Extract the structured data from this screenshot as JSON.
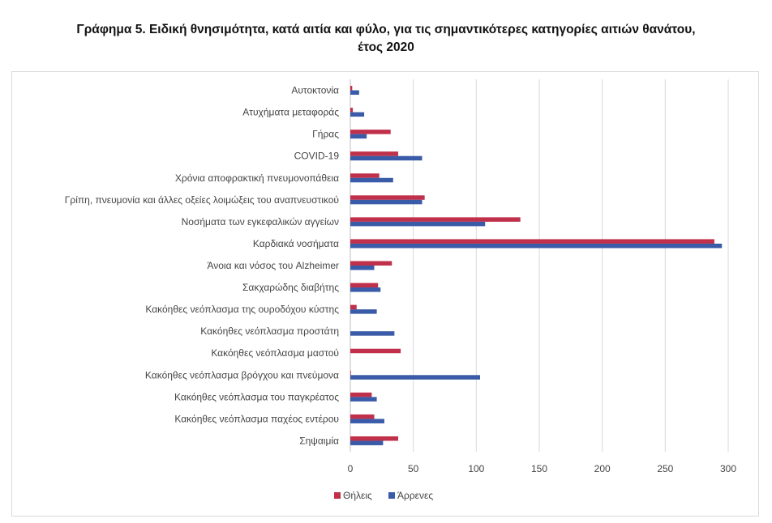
{
  "title_line1": "Γράφημα 5. Ειδική θνησιμότητα, κατά αιτία και φύλο, για τις σημαντικότερες κατηγορίες αιτιών θανάτου,",
  "title_line2": "έτος 2020",
  "colors": {
    "female": "#c0304a",
    "male": "#3a5ba8",
    "grid": "#d9d9d9"
  },
  "chart_data": {
    "type": "bar",
    "orientation": "horizontal",
    "categories": [
      "Αυτοκτονία",
      "Ατυχήματα μεταφοράς",
      "Γήρας",
      "COVID-19",
      "Χρόνια αποφρακτική πνευμονοπάθεια",
      "Γρίπη, πνευμονία και άλλες οξείες λοιμώξεις του αναπνευστικού",
      "Νοσήματα των εγκεφαλικών αγγείων",
      "Καρδιακά νοσήματα",
      "Άνοια και νόσος του Alzheimer",
      "Σακχαρώδης διαβήτης",
      "Κακόηθες νεόπλασμα της ουροδόχου κύστης",
      "Κακόηθες νεόπλασμα προστάτη",
      "Κακόηθες νεόπλασμα μαστού",
      "Κακόηθες νεόπλασμα βρόγχου και πνεύμονα",
      "Κακόηθες νεόπλασμα του παγκρέατος",
      "Κακόηθες νεόπλασμα παχέος εντέρου",
      "Σηψαιμία"
    ],
    "series": [
      {
        "name": "Θήλεις",
        "values": [
          1.5,
          2,
          32,
          38,
          23,
          59,
          135,
          289,
          33,
          22,
          5,
          0,
          40,
          0.5,
          17,
          19,
          38
        ]
      },
      {
        "name": "Άρρενες",
        "values": [
          7,
          11,
          13,
          57,
          34,
          57,
          107,
          295,
          19,
          24,
          21,
          35,
          0,
          103,
          21,
          27,
          26
        ]
      }
    ],
    "xlim": [
      0,
      300
    ],
    "xticks": [
      "0",
      "50",
      "100",
      "150",
      "200",
      "250",
      "300"
    ],
    "grid": true,
    "legend": "bottom"
  }
}
